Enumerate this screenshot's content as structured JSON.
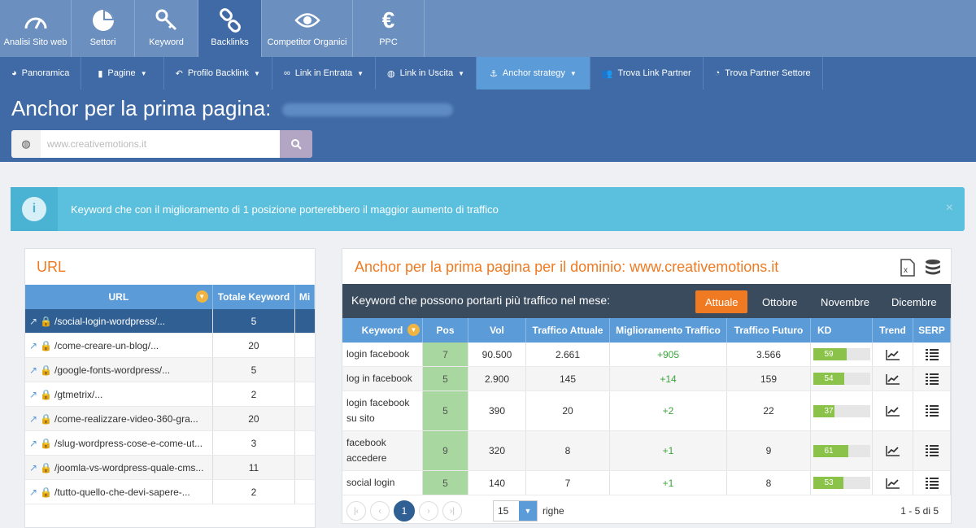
{
  "modules": [
    {
      "label": "Analisi Sito web",
      "icon": "gauge-icon"
    },
    {
      "label": "Settori",
      "icon": "pie-chart-icon"
    },
    {
      "label": "Keyword",
      "icon": "key-icon"
    },
    {
      "label": "Backlinks",
      "icon": "chain-link-icon",
      "active": true
    },
    {
      "label": "Competitor Organici",
      "icon": "eye-icon"
    },
    {
      "label": "PPC",
      "icon": "euro-icon"
    }
  ],
  "subnav": [
    {
      "label": "Panoramica",
      "icon": "dashboard-icon"
    },
    {
      "label": "Pagine",
      "icon": "file-icon"
    },
    {
      "label": "Profilo Backlink",
      "icon": "reply-icon"
    },
    {
      "label": "Link in Entrata",
      "icon": "link-icon"
    },
    {
      "label": "Link in Uscita",
      "icon": "globe-icon"
    },
    {
      "label": "Anchor strategy",
      "icon": "anchor-icon"
    },
    {
      "label": "Trova Link Partner",
      "icon": "users-icon"
    },
    {
      "label": "Trova Partner Settore",
      "icon": "pie-icon"
    }
  ],
  "page": {
    "title": "Anchor per la prima pagina:",
    "domain": "www.creativemotions.it",
    "search_value": "www.creativemotions.it"
  },
  "alert": {
    "text": "Keyword che con il miglioramento di 1 posizione porterebbero il maggior aumento di traffico",
    "close": "×"
  },
  "url_panel": {
    "title": "URL",
    "headers": {
      "url": "URL",
      "total": "Totale Keyword",
      "mi": "Mi"
    },
    "rows": [
      {
        "url": "/social-login-wordpress/...",
        "count": "5"
      },
      {
        "url": "/come-creare-un-blog/...",
        "count": "20"
      },
      {
        "url": "/google-fonts-wordpress/...",
        "count": "5"
      },
      {
        "url": "/gtmetrix/...",
        "count": "2"
      },
      {
        "url": "/come-realizzare-video-360-gra...",
        "count": "20"
      },
      {
        "url": "/slug-wordpress-cose-e-come-ut...",
        "count": "3"
      },
      {
        "url": "/joomla-vs-wordpress-quale-cms...",
        "count": "11"
      },
      {
        "url": "/tutto-quello-che-devi-sapere-...",
        "count": "2"
      }
    ]
  },
  "anchor_panel": {
    "title": "Anchor per la prima pagina per il dominio: www.creativemotions.it",
    "bar_label": "Keyword che possono portarti più traffico nel mese:",
    "months": [
      "Attuale",
      "Ottobre",
      "Novembre",
      "Dicembre"
    ],
    "headers": {
      "keyword": "Keyword",
      "pos": "Pos",
      "vol": "Vol",
      "traffic_now": "Traffico Attuale",
      "improvement": "Miglioramento Traffico",
      "traffic_future": "Traffico Futuro",
      "kd": "KD",
      "trend": "Trend",
      "serp": "SERP"
    },
    "rows": [
      {
        "keyword": "login facebook",
        "pos": "7",
        "vol": "90.500",
        "now": "2.661",
        "impr": "+905",
        "future": "3.566",
        "kd": 59
      },
      {
        "keyword": "log in facebook",
        "pos": "5",
        "vol": "2.900",
        "now": "145",
        "impr": "+14",
        "future": "159",
        "kd": 54
      },
      {
        "keyword": "login facebook su sito",
        "pos": "5",
        "vol": "390",
        "now": "20",
        "impr": "+2",
        "future": "22",
        "kd": 37
      },
      {
        "keyword": "facebook accedere",
        "pos": "9",
        "vol": "320",
        "now": "8",
        "impr": "+1",
        "future": "9",
        "kd": 61
      },
      {
        "keyword": "social login",
        "pos": "5",
        "vol": "140",
        "now": "7",
        "impr": "+1",
        "future": "8",
        "kd": 53
      }
    ],
    "pager": {
      "current": "1",
      "rows_per_page": "15",
      "rows_label": "righe",
      "range": "1 - 5 di 5"
    }
  }
}
